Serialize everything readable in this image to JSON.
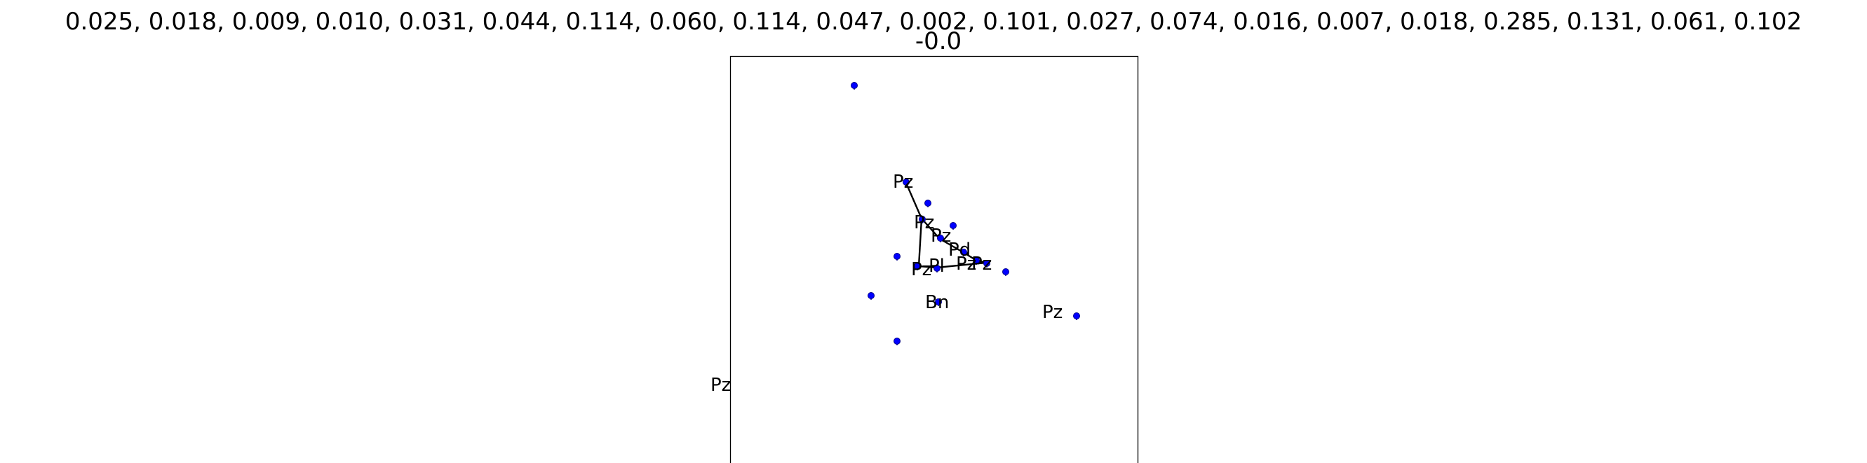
{
  "figure": {
    "title_line1": "0.025, 0.018, 0.009, 0.010, 0.031, 0.044, 0.114, 0.060, 0.114, 0.047, 0.002, 0.101, 0.027, 0.074, 0.016, 0.007, 0.018, 0.285, 0.131, 0.061, 0.102",
    "title_line2": "-0.0",
    "marker_color": "#0000ff",
    "edge_color": "#000000",
    "frame_color": "#000000"
  },
  "nodes": [
    {
      "id": "n1",
      "label": "Pz"
    },
    {
      "id": "n2",
      "label": "Pz"
    },
    {
      "id": "n3",
      "label": "Pz"
    },
    {
      "id": "n4",
      "label": "Pd"
    },
    {
      "id": "n5",
      "label": "Pz"
    },
    {
      "id": "n6",
      "label": "Pz"
    },
    {
      "id": "n7",
      "label": "Pz"
    },
    {
      "id": "n8",
      "label": "Pl"
    },
    {
      "id": "n9",
      "label": "Bn"
    },
    {
      "id": "n10",
      "label": "Pz"
    },
    {
      "id": "n11",
      "label": "Pz"
    }
  ],
  "markers": [
    {
      "id": "m1"
    },
    {
      "id": "m2"
    },
    {
      "id": "m3"
    },
    {
      "id": "m4"
    },
    {
      "id": "m5"
    },
    {
      "id": "m6"
    },
    {
      "id": "m7"
    },
    {
      "id": "m8"
    },
    {
      "id": "m9"
    },
    {
      "id": "m10"
    },
    {
      "id": "m11"
    },
    {
      "id": "m12"
    },
    {
      "id": "m13"
    },
    {
      "id": "m14"
    },
    {
      "id": "m15"
    },
    {
      "id": "m16"
    },
    {
      "id": "m17"
    }
  ],
  "edges": [
    {
      "from": "n1",
      "to": "n2"
    },
    {
      "from": "n2",
      "to": "n3"
    },
    {
      "from": "n2",
      "to": "n7"
    },
    {
      "from": "n3",
      "to": "n4"
    },
    {
      "from": "n4",
      "to": "n5"
    },
    {
      "from": "n5",
      "to": "n6"
    },
    {
      "from": "n7",
      "to": "n8"
    },
    {
      "from": "n8",
      "to": "n6"
    }
  ]
}
